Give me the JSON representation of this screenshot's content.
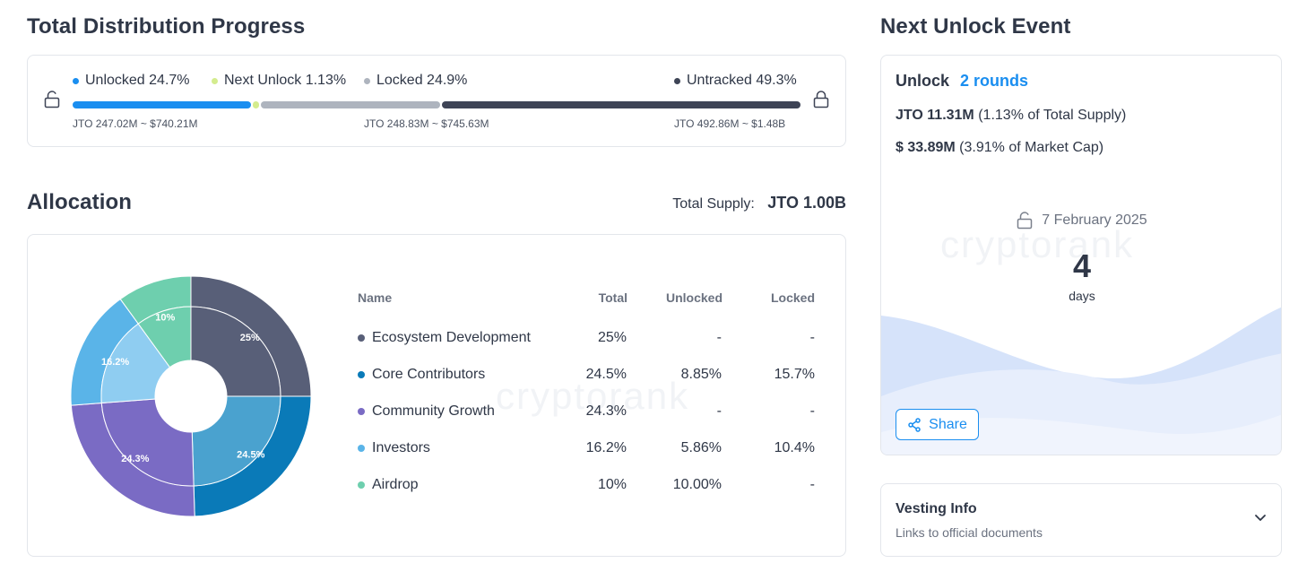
{
  "progress": {
    "title": "Total Distribution Progress",
    "legend": [
      {
        "label": "Unlocked 24.7%",
        "color": "#1a8ef0"
      },
      {
        "label": "Next Unlock 1.13%",
        "color": "#d4ec8e"
      },
      {
        "label": "Locked 24.9%",
        "color": "#aeb4be"
      },
      {
        "label": "Untracked 49.3%",
        "color": "#3e4456"
      }
    ],
    "segments": [
      {
        "name": "unlocked",
        "percent": 24.7,
        "color": "#1a8ef0"
      },
      {
        "name": "next-unlock",
        "percent": 1.13,
        "color": "#d4ec8e"
      },
      {
        "name": "locked",
        "percent": 24.9,
        "color": "#aeb4be"
      },
      {
        "name": "untracked",
        "percent": 49.3,
        "color": "#3e4456"
      }
    ],
    "sub_unlocked": "JTO 247.02M ~ $740.21M",
    "sub_locked": "JTO 248.83M ~ $745.63M",
    "sub_untracked": "JTO 492.86M ~ $1.48B"
  },
  "allocation": {
    "title": "Allocation",
    "total_supply_label": "Total Supply:",
    "total_supply_value": "JTO 1.00B",
    "watermark": "cryptorank",
    "columns": {
      "name": "Name",
      "total": "Total",
      "unlocked": "Unlocked",
      "locked": "Locked"
    },
    "rows": [
      {
        "name": "Ecosystem Development",
        "total": "25%",
        "unlocked": "-",
        "locked": "-",
        "color": "#585f78"
      },
      {
        "name": "Core Contributors",
        "total": "24.5%",
        "unlocked": "8.85%",
        "locked": "15.7%",
        "color": "#0a7ab8"
      },
      {
        "name": "Community Growth",
        "total": "24.3%",
        "unlocked": "-",
        "locked": "-",
        "color": "#7a6bc4"
      },
      {
        "name": "Investors",
        "total": "16.2%",
        "unlocked": "5.86%",
        "locked": "10.4%",
        "color": "#5ab4e8"
      },
      {
        "name": "Airdrop",
        "total": "10%",
        "unlocked": "10.00%",
        "locked": "-",
        "color": "#6ecfae"
      }
    ]
  },
  "chart_data": {
    "type": "pie",
    "categories": [
      "Ecosystem Development",
      "Core Contributors",
      "Community Growth",
      "Investors",
      "Airdrop"
    ],
    "values": [
      25,
      24.5,
      24.3,
      16.2,
      10
    ],
    "data_labels": [
      "25%",
      "24.5%",
      "24.3%",
      "16.2%",
      "10%"
    ],
    "inner_unlocked_share": [
      0,
      8.85,
      0,
      5.86,
      10
    ],
    "colors": [
      "#585f78",
      "#0a7ab8",
      "#7a6bc4",
      "#5ab4e8",
      "#6ecfae"
    ],
    "unlocked_colors": [
      "#585f78",
      "#4aa2cf",
      "#7a6bc4",
      "#8fcdf1",
      "#6ecfae"
    ]
  },
  "next_unlock": {
    "title": "Next Unlock Event",
    "unlock_label": "Unlock",
    "rounds": "2 rounds",
    "tokens_strong": "JTO 11.31M",
    "tokens_note": "(1.13% of Total Supply)",
    "usd_strong": "$ 33.89M",
    "usd_note": "(3.91% of Market Cap)",
    "date": "7 February 2025",
    "days_value": "4",
    "days_label": "days",
    "watermark": "cryptorank",
    "share_label": "Share"
  },
  "vesting": {
    "title": "Vesting Info",
    "subtitle": "Links to official documents"
  },
  "icons": {
    "lock": "lock-icon",
    "unlock": "unlock-icon",
    "share": "share-icon",
    "chevron": "chevron-down-icon"
  }
}
